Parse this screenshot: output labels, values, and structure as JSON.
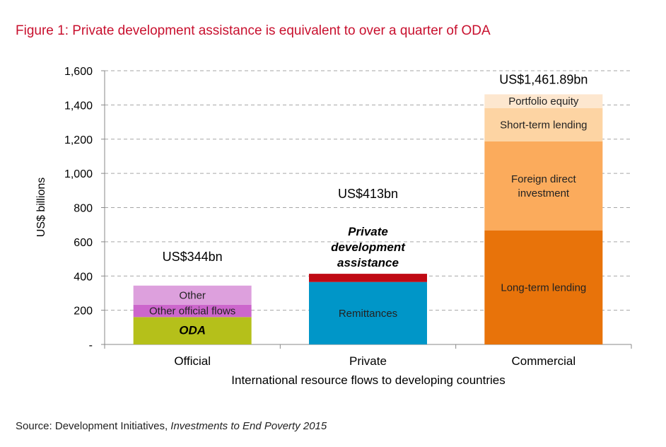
{
  "title": "Figure 1: Private development assistance is equivalent to over a quarter of ODA",
  "source": {
    "prefix": "Source: Development Initiatives, ",
    "publication": "Investments to End Poverty 2015"
  },
  "chart_data": {
    "type": "bar",
    "stacked": true,
    "title": "Figure 1: Private development assistance is equivalent to over a quarter of ODA",
    "xlabel": "International resource flows to developing countries",
    "ylabel": "US$ billions",
    "ylim": [
      0,
      1600
    ],
    "yticks": [
      0,
      200,
      400,
      600,
      800,
      1000,
      1200,
      1400,
      1600
    ],
    "ytick_labels": [
      "-",
      "200",
      "400",
      "600",
      "800",
      "1,000",
      "1,200",
      "1,400",
      "1,600"
    ],
    "grid": true,
    "categories": [
      "Official",
      "Private",
      "Commercial"
    ],
    "totals": [
      {
        "category": "Official",
        "label": "US$344bn",
        "value": 344
      },
      {
        "category": "Private",
        "label": "US$413bn",
        "value": 413
      },
      {
        "category": "Commercial",
        "label": "US$1,461.89bn",
        "value": 1461.89
      }
    ],
    "bars": [
      {
        "category": "Official",
        "segments": [
          {
            "label": "ODA",
            "value": 160,
            "color": "#b5c01a",
            "style": "bold-italic"
          },
          {
            "label": "Other official flows",
            "value": 72,
            "color": "#cc66cc",
            "style": "normal"
          },
          {
            "label": "Other",
            "value": 112,
            "color": "#dda0dd",
            "style": "normal"
          }
        ]
      },
      {
        "category": "Private",
        "segments": [
          {
            "label": "Remittances",
            "value": 365,
            "color": "#0096c8",
            "style": "normal"
          },
          {
            "label": "Private development assistance",
            "value": 48,
            "color": "#c00a14",
            "style": "bold-italic"
          }
        ]
      },
      {
        "category": "Commercial",
        "segments": [
          {
            "label": "Long-term lending",
            "value": 667,
            "color": "#e8730a",
            "style": "normal"
          },
          {
            "label": "Foreign direct investment",
            "value": 520,
            "color": "#fbab5c",
            "style": "normal"
          },
          {
            "label": "Short-term lending",
            "value": 195,
            "color": "#fdd4a3",
            "style": "normal"
          },
          {
            "label": "Portfolio equity",
            "value": 80,
            "color": "#fde7cf",
            "style": "normal"
          }
        ]
      }
    ]
  }
}
